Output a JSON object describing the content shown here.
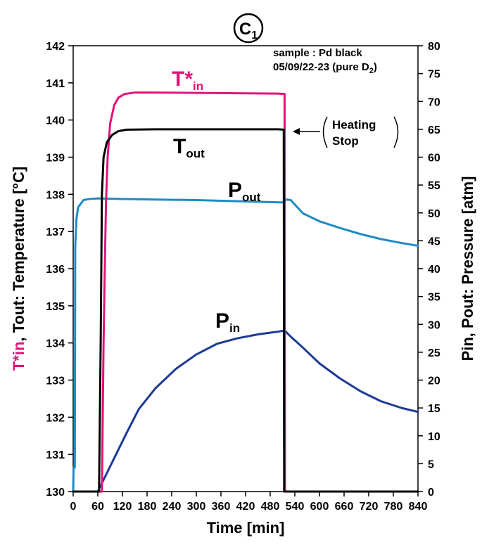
{
  "chart_data": {
    "type": "line",
    "panel_label": "C",
    "panel_label_sub": "1",
    "x_axis": {
      "label": "Time [min]",
      "range": [
        0,
        840
      ],
      "ticks": [
        "0",
        "60",
        "120",
        "180",
        "240",
        "300",
        "360",
        "420",
        "480",
        "540",
        "600",
        "660",
        "720",
        "780",
        "840"
      ]
    },
    "y_left_axis": {
      "label_parts": [
        "T*in",
        ", Tout: Temperature [",
        "°C",
        "]"
      ],
      "range": [
        130,
        142
      ],
      "ticks": [
        "130",
        "131",
        "132",
        "133",
        "134",
        "135",
        "136",
        "137",
        "138",
        "139",
        "140",
        "141",
        "142"
      ]
    },
    "y_right_axis": {
      "label": "Pin, Pout: Pressure [atm]",
      "range": [
        0,
        80
      ],
      "ticks": [
        "0",
        "5",
        "10",
        "15",
        "20",
        "25",
        "30",
        "35",
        "40",
        "45",
        "50",
        "55",
        "60",
        "65",
        "70",
        "75",
        "80"
      ]
    },
    "annotations": {
      "sample_line1": "sample : Pd black",
      "sample_line2": "05/09/22-23 (pure D",
      "sample_line2_sub": "2",
      "sample_line2_end": ")",
      "heating_line1": "Heating",
      "heating_line2": "Stop"
    },
    "series": [
      {
        "name": "T*in",
        "name_main": "T*",
        "name_sub": "in",
        "axis": "left",
        "color": "#e0147a",
        "points": [
          [
            0,
            130
          ],
          [
            60,
            130
          ],
          [
            70,
            130
          ],
          [
            72,
            132
          ],
          [
            74,
            134
          ],
          [
            77,
            136
          ],
          [
            80,
            137.8
          ],
          [
            84,
            139
          ],
          [
            90,
            139.9
          ],
          [
            100,
            140.4
          ],
          [
            110,
            140.6
          ],
          [
            125,
            140.7
          ],
          [
            150,
            140.74
          ],
          [
            200,
            140.74
          ],
          [
            300,
            140.73
          ],
          [
            400,
            140.72
          ],
          [
            500,
            140.71
          ],
          [
            515,
            140.7
          ],
          [
            516,
            130
          ],
          [
            840,
            130
          ]
        ]
      },
      {
        "name": "Tout",
        "name_main": "T",
        "name_sub": "out",
        "axis": "left",
        "color": "#000000",
        "points": [
          [
            0,
            130
          ],
          [
            60,
            130
          ],
          [
            63,
            130
          ],
          [
            67,
            134
          ],
          [
            70,
            138
          ],
          [
            74,
            139
          ],
          [
            82,
            139.4
          ],
          [
            95,
            139.6
          ],
          [
            110,
            139.7
          ],
          [
            130,
            139.74
          ],
          [
            200,
            139.75
          ],
          [
            300,
            139.75
          ],
          [
            400,
            139.75
          ],
          [
            500,
            139.75
          ],
          [
            513,
            139.74
          ],
          [
            514,
            130
          ],
          [
            840,
            130
          ]
        ]
      },
      {
        "name": "Pout",
        "name_main": "P",
        "name_sub": "out",
        "axis": "right",
        "color": "#1e8bc3",
        "points": [
          [
            0,
            0
          ],
          [
            1,
            4.3
          ],
          [
            4,
            4.3
          ],
          [
            5,
            44
          ],
          [
            8,
            49
          ],
          [
            12,
            51
          ],
          [
            25,
            52.3
          ],
          [
            40,
            52.5
          ],
          [
            60,
            52.6
          ],
          [
            120,
            52.5
          ],
          [
            200,
            52.4
          ],
          [
            300,
            52.3
          ],
          [
            400,
            52.1
          ],
          [
            500,
            51.9
          ],
          [
            512,
            51.9
          ],
          [
            520,
            52.4
          ],
          [
            530,
            52.3
          ],
          [
            540,
            51.5
          ],
          [
            560,
            49.9
          ],
          [
            600,
            48.5
          ],
          [
            650,
            47.3
          ],
          [
            700,
            46.2
          ],
          [
            750,
            45.3
          ],
          [
            800,
            44.6
          ],
          [
            840,
            44.1
          ]
        ]
      },
      {
        "name": "Pin",
        "name_main": "P",
        "name_sub": "in",
        "axis": "right",
        "color": "#1c3a95",
        "points": [
          [
            60,
            0
          ],
          [
            80,
            3
          ],
          [
            100,
            6
          ],
          [
            130,
            10.5
          ],
          [
            160,
            14.8
          ],
          [
            200,
            18.5
          ],
          [
            250,
            22
          ],
          [
            300,
            24.6
          ],
          [
            350,
            26.5
          ],
          [
            400,
            27.5
          ],
          [
            450,
            28.2
          ],
          [
            500,
            28.7
          ],
          [
            515,
            28.9
          ],
          [
            530,
            27.8
          ],
          [
            560,
            25.8
          ],
          [
            600,
            23
          ],
          [
            650,
            20.3
          ],
          [
            700,
            18
          ],
          [
            750,
            16.2
          ],
          [
            800,
            15
          ],
          [
            840,
            14.3
          ]
        ]
      }
    ]
  }
}
